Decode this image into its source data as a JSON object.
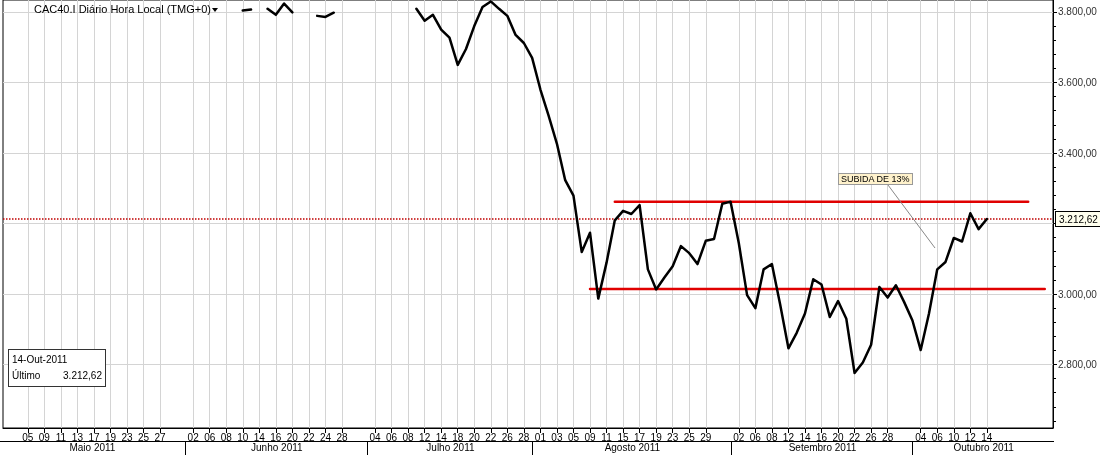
{
  "chart_data": {
    "type": "line",
    "title": "CAC40.I Diário Hora Local (TMG+0)",
    "categories": [
      null,
      null,
      null,
      "05",
      null,
      "09",
      null,
      "11",
      null,
      "13",
      null,
      "17",
      null,
      "19",
      null,
      "23",
      null,
      "25",
      null,
      "27",
      null,
      null,
      null,
      "02",
      null,
      "06",
      null,
      "08",
      null,
      "10",
      null,
      "14",
      null,
      "16",
      null,
      "20",
      null,
      "22",
      null,
      "24",
      null,
      "28",
      null,
      null,
      null,
      "04",
      null,
      "06",
      null,
      "08",
      null,
      "12",
      null,
      "14",
      null,
      "18",
      null,
      "20",
      null,
      "22",
      null,
      "26",
      null,
      "28",
      null,
      "01",
      null,
      "03",
      null,
      "05",
      null,
      "09",
      null,
      "11",
      null,
      "15",
      null,
      "17",
      null,
      "19",
      null,
      "23",
      null,
      "25",
      null,
      "29",
      null,
      null,
      null,
      "02",
      null,
      "06",
      null,
      "08",
      null,
      "12",
      null,
      "14",
      null,
      "16",
      null,
      "20",
      null,
      "22",
      null,
      "26",
      null,
      "28",
      null,
      null,
      null,
      "04",
      null,
      "06",
      null,
      "10",
      null,
      "12",
      null,
      "14",
      null,
      null,
      null,
      null,
      null,
      null,
      null,
      null
    ],
    "series": [
      {
        "color": "#000000",
        "values": [
          null,
          null,
          null,
          null,
          null,
          null,
          null,
          null,
          null,
          null,
          null,
          null,
          null,
          null,
          null,
          null,
          null,
          null,
          null,
          null,
          null,
          null,
          null,
          null,
          null,
          null,
          null,
          null,
          null,
          3804,
          3807,
          null,
          3809,
          3792,
          3824,
          3799,
          null,
          null,
          3789,
          3786,
          3798,
          null,
          null,
          null,
          null,
          null,
          null,
          null,
          null,
          null,
          3809,
          3775,
          3792,
          3750,
          3727,
          3650,
          3695,
          3760,
          3814,
          3830,
          3809,
          3789,
          3735,
          3712,
          3670,
          3580,
          3505,
          3426,
          3323,
          3279,
          3119,
          3174,
          2987,
          3089,
          3209,
          3236,
          3227,
          3252,
          3070,
          3013,
          3047,
          3079,
          3136,
          3116,
          3085,
          3151,
          3156,
          3256,
          3262,
          3144,
          2997,
          2960,
          3070,
          3085,
          2970,
          2846,
          2890,
          2945,
          3042,
          3027,
          2935,
          2980,
          2930,
          2776,
          2806,
          2856,
          3020,
          2990,
          3025,
          2977,
          2925,
          2841,
          2945,
          3070,
          3091,
          3159,
          3149,
          3229,
          3184,
          3212.62,
          null,
          null,
          null,
          null,
          null,
          null,
          null,
          null
        ]
      },
      {
        "color": "#e00000",
        "values": [
          null,
          null,
          null,
          null,
          null,
          null,
          null,
          null,
          null,
          null,
          null,
          null,
          null,
          null,
          null,
          null,
          null,
          null,
          null,
          null,
          null,
          null,
          null,
          null,
          null,
          null,
          null,
          null,
          null,
          null,
          null,
          null,
          null,
          null,
          null,
          null,
          null,
          null,
          null,
          null,
          null,
          null,
          null,
          null,
          null,
          null,
          null,
          null,
          null,
          null,
          null,
          null,
          null,
          null,
          null,
          null,
          null,
          null,
          null,
          null,
          null,
          null,
          null,
          null,
          null,
          null,
          null,
          null,
          null,
          null,
          null,
          null,
          null,
          null,
          3262,
          null,
          null,
          null,
          null,
          null,
          null,
          null,
          null,
          null,
          null,
          null,
          null,
          null,
          null,
          null,
          null,
          null,
          null,
          null,
          null,
          null,
          null,
          null,
          null,
          null,
          null,
          null,
          null,
          null,
          null,
          null,
          null,
          null,
          null,
          null,
          null,
          null,
          null,
          null,
          null,
          null,
          null,
          null,
          null,
          null,
          null,
          null,
          null,
          null,
          3262,
          null,
          null,
          null
        ]
      },
      {
        "color": "#e00000",
        "values": [
          null,
          null,
          null,
          null,
          null,
          null,
          null,
          null,
          null,
          null,
          null,
          null,
          null,
          null,
          null,
          null,
          null,
          null,
          null,
          null,
          null,
          null,
          null,
          null,
          null,
          null,
          null,
          null,
          null,
          null,
          null,
          null,
          null,
          null,
          null,
          null,
          null,
          null,
          null,
          null,
          null,
          null,
          null,
          null,
          null,
          null,
          null,
          null,
          null,
          null,
          null,
          null,
          null,
          null,
          null,
          null,
          null,
          null,
          null,
          null,
          null,
          null,
          null,
          null,
          null,
          null,
          null,
          null,
          null,
          null,
          null,
          3014,
          null,
          null,
          null,
          null,
          null,
          null,
          null,
          null,
          null,
          null,
          null,
          null,
          null,
          null,
          null,
          null,
          null,
          null,
          null,
          null,
          null,
          null,
          null,
          null,
          null,
          null,
          null,
          null,
          null,
          null,
          null,
          null,
          null,
          null,
          null,
          null,
          null,
          null,
          null,
          null,
          null,
          null,
          null,
          null,
          null,
          null,
          null,
          null,
          null,
          null,
          null,
          null,
          null,
          null,
          3014,
          null
        ]
      }
    ],
    "ylim": [
      2620,
      3834
    ],
    "yticks": [
      {
        "value": 2800,
        "label": "2.800,00"
      },
      {
        "value": 3000,
        "label": "3.000,00"
      },
      {
        "value": 3200,
        "label": null
      },
      {
        "value": 3400,
        "label": "3.400,00"
      },
      {
        "value": 3600,
        "label": "3.600,00"
      },
      {
        "value": 3800,
        "label": "3.800,00"
      }
    ],
    "ref_lines": [
      {
        "axis": "y",
        "value": 3212.62,
        "label": "3.212,62",
        "color": "#c00000",
        "line_style": "dotted"
      }
    ],
    "annotations": [
      "Maio 2011",
      "Junho 2011",
      "Julho 2011",
      "Agosto 2011",
      "Setembro 2011",
      "Outubro 2011",
      "SUBIDA DE 13%",
      "14-Out-2011",
      "Último",
      "3.212,62"
    ],
    "grid": true,
    "marker": "none",
    "line_style": "solid"
  }
}
